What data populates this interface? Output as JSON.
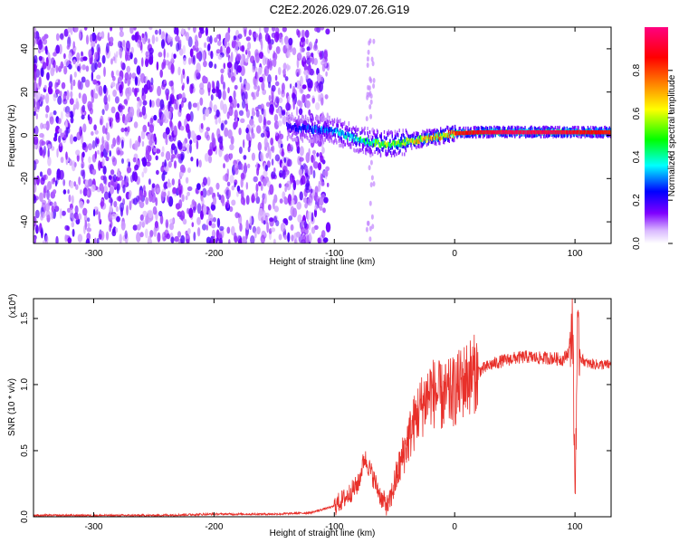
{
  "title": "C2E2.2026.029.07.26.G19",
  "colors": {
    "snr_line": "#e8302a",
    "background": "#ffffff",
    "axis": "#000000"
  },
  "chart_data": [
    {
      "type": "heatmap",
      "name": "spectrogram",
      "xlabel": "Height of straight line (km)",
      "ylabel": "Frequency (Hz)",
      "xlim": [
        -350,
        130
      ],
      "ylim": [
        -50,
        50
      ],
      "xticks": [
        -300,
        -200,
        -100,
        0,
        100
      ],
      "yticks": [
        -40,
        -20,
        0,
        20,
        40
      ],
      "colorbar": {
        "label": "Normalized spectral amplitude",
        "range": [
          0.0,
          1.0
        ],
        "ticks": [
          0.0,
          0.2,
          0.4,
          0.6,
          0.8
        ],
        "colormap": [
          "#ffffff",
          "#7f00ff",
          "#0000ff",
          "#00ffff",
          "#00ff00",
          "#ffff00",
          "#ff8000",
          "#ff0000",
          "#ff0080"
        ]
      },
      "ridge": {
        "description": "frequency of peak spectral amplitude vs height",
        "x": [
          -140,
          -120,
          -100,
          -90,
          -80,
          -70,
          -60,
          -50,
          -40,
          -30,
          -20,
          -10,
          0,
          20,
          40,
          60,
          80,
          100,
          130
        ],
        "y": [
          4,
          3,
          2,
          0,
          -2,
          -3,
          -4,
          -4,
          -3,
          -2,
          -1,
          0,
          1,
          1.5,
          1.5,
          1.5,
          1.5,
          1.5,
          1.5
        ],
        "amplitude": [
          0.2,
          0.3,
          0.35,
          0.4,
          0.45,
          0.5,
          0.55,
          0.6,
          0.65,
          0.7,
          0.75,
          0.8,
          0.85,
          0.9,
          0.95,
          0.95,
          0.95,
          0.9,
          0.85
        ]
      },
      "noise_region_x": [
        -350,
        -110
      ]
    },
    {
      "type": "line",
      "name": "snr",
      "xlabel": "Height of straight line (km)",
      "ylabel": "SNR (10 * v/v)",
      "y_multiplier_label": "(x10",
      "y_multiplier_exp": "4",
      "y_multiplier_close": ")",
      "xlim": [
        -350,
        130
      ],
      "ylim": [
        0,
        1.65
      ],
      "xticks": [
        -300,
        -200,
        -100,
        0,
        100
      ],
      "yticks": [
        "0.0",
        "0.5",
        "1.0",
        "1.5"
      ],
      "series": [
        {
          "name": "SNR",
          "x": [
            -350,
            -300,
            -250,
            -200,
            -150,
            -120,
            -100,
            -90,
            -80,
            -75,
            -70,
            -60,
            -55,
            -50,
            -40,
            -30,
            -20,
            -10,
            0,
            10,
            20,
            30,
            40,
            50,
            60,
            70,
            80,
            90,
            95,
            98,
            100,
            102,
            105,
            110,
            120,
            130
          ],
          "y": [
            0.01,
            0.01,
            0.01,
            0.02,
            0.02,
            0.03,
            0.08,
            0.15,
            0.25,
            0.45,
            0.35,
            0.12,
            0.08,
            0.25,
            0.55,
            0.8,
            0.95,
            0.9,
            0.95,
            1.05,
            1.1,
            1.15,
            1.18,
            1.2,
            1.21,
            1.2,
            1.2,
            1.19,
            1.25,
            1.5,
            0.15,
            1.35,
            1.2,
            1.16,
            1.15,
            1.15
          ]
        }
      ],
      "noise_amplitude": 0.08,
      "noise_start_x": -100
    }
  ]
}
